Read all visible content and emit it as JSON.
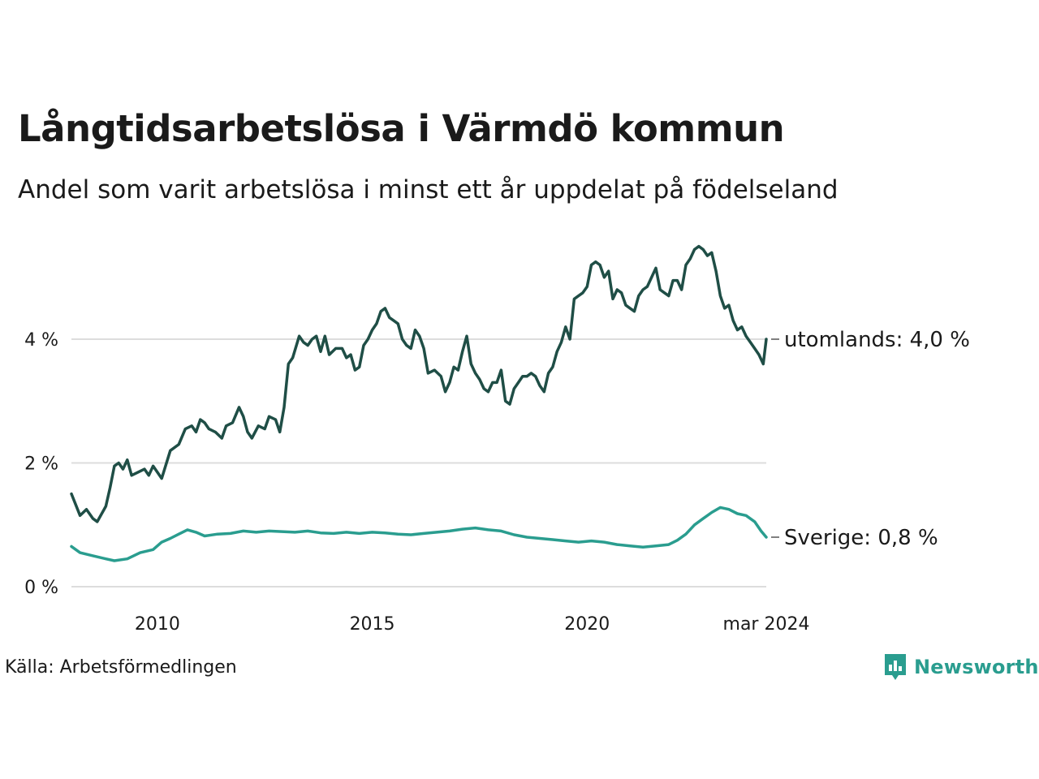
{
  "title": "Långtidsarbetslösa i Värmdö kommun",
  "subtitle": "Andel som varit arbetslösa i minst ett år uppdelat på födelseland",
  "source": "Källa: Arbetsförmedlingen",
  "brand": "Newsworthy",
  "colors": {
    "utomlands": "#1f4e46",
    "sverige": "#2a9d8f",
    "grid": "#dddddd",
    "text": "#1a1a1a"
  },
  "chart_data": {
    "type": "line",
    "title": "Långtidsarbetslösa i Värmdö kommun",
    "xlabel": "",
    "ylabel": "",
    "xlim": [
      2008.0,
      2024.17
    ],
    "ylim": [
      0,
      5.5
    ],
    "y_ticks": [
      {
        "value": 0,
        "label": "0 %"
      },
      {
        "value": 2,
        "label": "2 %"
      },
      {
        "value": 4,
        "label": "4 %"
      }
    ],
    "x_ticks": [
      {
        "value": 2010,
        "label": "2010"
      },
      {
        "value": 2015,
        "label": "2015"
      },
      {
        "value": 2020,
        "label": "2020"
      },
      {
        "value": 2024.17,
        "label": "mar 2024"
      }
    ],
    "series": [
      {
        "name": "utomlands",
        "end_label": "utomlands: 4,0 %",
        "color": "#1f4e46",
        "points": [
          [
            2008.0,
            1.5
          ],
          [
            2008.2,
            1.15
          ],
          [
            2008.35,
            1.25
          ],
          [
            2008.5,
            1.1
          ],
          [
            2008.6,
            1.05
          ],
          [
            2008.8,
            1.3
          ],
          [
            2008.9,
            1.6
          ],
          [
            2009.0,
            1.95
          ],
          [
            2009.1,
            2.0
          ],
          [
            2009.2,
            1.9
          ],
          [
            2009.3,
            2.05
          ],
          [
            2009.4,
            1.8
          ],
          [
            2009.55,
            1.85
          ],
          [
            2009.7,
            1.9
          ],
          [
            2009.8,
            1.8
          ],
          [
            2009.9,
            1.95
          ],
          [
            2010.1,
            1.75
          ],
          [
            2010.3,
            2.2
          ],
          [
            2010.5,
            2.3
          ],
          [
            2010.65,
            2.55
          ],
          [
            2010.8,
            2.6
          ],
          [
            2010.9,
            2.5
          ],
          [
            2011.0,
            2.7
          ],
          [
            2011.1,
            2.65
          ],
          [
            2011.2,
            2.55
          ],
          [
            2011.35,
            2.5
          ],
          [
            2011.5,
            2.4
          ],
          [
            2011.6,
            2.6
          ],
          [
            2011.75,
            2.65
          ],
          [
            2011.9,
            2.9
          ],
          [
            2012.0,
            2.75
          ],
          [
            2012.1,
            2.5
          ],
          [
            2012.2,
            2.4
          ],
          [
            2012.35,
            2.6
          ],
          [
            2012.5,
            2.55
          ],
          [
            2012.6,
            2.75
          ],
          [
            2012.75,
            2.7
          ],
          [
            2012.85,
            2.5
          ],
          [
            2012.95,
            2.9
          ],
          [
            2013.05,
            3.6
          ],
          [
            2013.15,
            3.7
          ],
          [
            2013.3,
            4.05
          ],
          [
            2013.4,
            3.95
          ],
          [
            2013.5,
            3.9
          ],
          [
            2013.6,
            4.0
          ],
          [
            2013.7,
            4.05
          ],
          [
            2013.8,
            3.8
          ],
          [
            2013.9,
            4.05
          ],
          [
            2014.0,
            3.75
          ],
          [
            2014.15,
            3.85
          ],
          [
            2014.3,
            3.85
          ],
          [
            2014.4,
            3.7
          ],
          [
            2014.5,
            3.75
          ],
          [
            2014.6,
            3.5
          ],
          [
            2014.7,
            3.55
          ],
          [
            2014.8,
            3.9
          ],
          [
            2014.9,
            4.0
          ],
          [
            2015.0,
            4.15
          ],
          [
            2015.1,
            4.25
          ],
          [
            2015.2,
            4.45
          ],
          [
            2015.3,
            4.5
          ],
          [
            2015.4,
            4.35
          ],
          [
            2015.5,
            4.3
          ],
          [
            2015.6,
            4.25
          ],
          [
            2015.7,
            4.0
          ],
          [
            2015.8,
            3.9
          ],
          [
            2015.9,
            3.85
          ],
          [
            2016.0,
            4.15
          ],
          [
            2016.1,
            4.05
          ],
          [
            2016.2,
            3.85
          ],
          [
            2016.3,
            3.45
          ],
          [
            2016.45,
            3.5
          ],
          [
            2016.6,
            3.4
          ],
          [
            2016.7,
            3.15
          ],
          [
            2016.8,
            3.3
          ],
          [
            2016.9,
            3.55
          ],
          [
            2017.0,
            3.5
          ],
          [
            2017.1,
            3.8
          ],
          [
            2017.2,
            4.05
          ],
          [
            2017.3,
            3.6
          ],
          [
            2017.4,
            3.45
          ],
          [
            2017.5,
            3.35
          ],
          [
            2017.6,
            3.2
          ],
          [
            2017.7,
            3.15
          ],
          [
            2017.8,
            3.3
          ],
          [
            2017.9,
            3.3
          ],
          [
            2018.0,
            3.5
          ],
          [
            2018.1,
            3.0
          ],
          [
            2018.2,
            2.95
          ],
          [
            2018.3,
            3.2
          ],
          [
            2018.4,
            3.3
          ],
          [
            2018.5,
            3.4
          ],
          [
            2018.6,
            3.4
          ],
          [
            2018.7,
            3.45
          ],
          [
            2018.8,
            3.4
          ],
          [
            2018.9,
            3.25
          ],
          [
            2019.0,
            3.15
          ],
          [
            2019.1,
            3.45
          ],
          [
            2019.2,
            3.55
          ],
          [
            2019.3,
            3.8
          ],
          [
            2019.4,
            3.95
          ],
          [
            2019.5,
            4.2
          ],
          [
            2019.6,
            4.0
          ],
          [
            2019.7,
            4.65
          ],
          [
            2019.8,
            4.7
          ],
          [
            2019.9,
            4.75
          ],
          [
            2020.0,
            4.85
          ],
          [
            2020.1,
            5.2
          ],
          [
            2020.2,
            5.25
          ],
          [
            2020.3,
            5.2
          ],
          [
            2020.4,
            5.0
          ],
          [
            2020.5,
            5.1
          ],
          [
            2020.6,
            4.65
          ],
          [
            2020.7,
            4.8
          ],
          [
            2020.8,
            4.75
          ],
          [
            2020.9,
            4.55
          ],
          [
            2021.0,
            4.5
          ],
          [
            2021.1,
            4.45
          ],
          [
            2021.2,
            4.7
          ],
          [
            2021.3,
            4.8
          ],
          [
            2021.4,
            4.85
          ],
          [
            2021.5,
            5.0
          ],
          [
            2021.6,
            5.15
          ],
          [
            2021.7,
            4.8
          ],
          [
            2021.8,
            4.75
          ],
          [
            2021.9,
            4.7
          ],
          [
            2022.0,
            4.95
          ],
          [
            2022.1,
            4.95
          ],
          [
            2022.2,
            4.8
          ],
          [
            2022.3,
            5.2
          ],
          [
            2022.4,
            5.3
          ],
          [
            2022.5,
            5.45
          ],
          [
            2022.6,
            5.5
          ],
          [
            2022.7,
            5.45
          ],
          [
            2022.8,
            5.35
          ],
          [
            2022.9,
            5.4
          ],
          [
            2023.0,
            5.1
          ],
          [
            2023.1,
            4.7
          ],
          [
            2023.2,
            4.5
          ],
          [
            2023.3,
            4.55
          ],
          [
            2023.4,
            4.3
          ],
          [
            2023.5,
            4.15
          ],
          [
            2023.6,
            4.2
          ],
          [
            2023.7,
            4.05
          ],
          [
            2023.8,
            3.95
          ],
          [
            2023.9,
            3.85
          ],
          [
            2024.0,
            3.75
          ],
          [
            2024.1,
            3.6
          ],
          [
            2024.17,
            4.0
          ]
        ]
      },
      {
        "name": "Sverige",
        "end_label": "Sverige: 0,8 %",
        "color": "#2a9d8f",
        "points": [
          [
            2008.0,
            0.65
          ],
          [
            2008.2,
            0.55
          ],
          [
            2008.5,
            0.5
          ],
          [
            2008.8,
            0.45
          ],
          [
            2009.0,
            0.42
          ],
          [
            2009.3,
            0.45
          ],
          [
            2009.6,
            0.55
          ],
          [
            2009.9,
            0.6
          ],
          [
            2010.1,
            0.72
          ],
          [
            2010.3,
            0.78
          ],
          [
            2010.5,
            0.85
          ],
          [
            2010.7,
            0.92
          ],
          [
            2010.9,
            0.88
          ],
          [
            2011.1,
            0.82
          ],
          [
            2011.4,
            0.85
          ],
          [
            2011.7,
            0.86
          ],
          [
            2012.0,
            0.9
          ],
          [
            2012.3,
            0.88
          ],
          [
            2012.6,
            0.9
          ],
          [
            2012.9,
            0.89
          ],
          [
            2013.2,
            0.88
          ],
          [
            2013.5,
            0.9
          ],
          [
            2013.8,
            0.87
          ],
          [
            2014.1,
            0.86
          ],
          [
            2014.4,
            0.88
          ],
          [
            2014.7,
            0.86
          ],
          [
            2015.0,
            0.88
          ],
          [
            2015.3,
            0.87
          ],
          [
            2015.6,
            0.85
          ],
          [
            2015.9,
            0.84
          ],
          [
            2016.2,
            0.86
          ],
          [
            2016.5,
            0.88
          ],
          [
            2016.8,
            0.9
          ],
          [
            2017.1,
            0.93
          ],
          [
            2017.4,
            0.95
          ],
          [
            2017.7,
            0.92
          ],
          [
            2018.0,
            0.9
          ],
          [
            2018.3,
            0.84
          ],
          [
            2018.6,
            0.8
          ],
          [
            2018.9,
            0.78
          ],
          [
            2019.2,
            0.76
          ],
          [
            2019.5,
            0.74
          ],
          [
            2019.8,
            0.72
          ],
          [
            2020.1,
            0.74
          ],
          [
            2020.4,
            0.72
          ],
          [
            2020.7,
            0.68
          ],
          [
            2021.0,
            0.66
          ],
          [
            2021.3,
            0.64
          ],
          [
            2021.6,
            0.66
          ],
          [
            2021.9,
            0.68
          ],
          [
            2022.1,
            0.75
          ],
          [
            2022.3,
            0.85
          ],
          [
            2022.5,
            1.0
          ],
          [
            2022.7,
            1.1
          ],
          [
            2022.9,
            1.2
          ],
          [
            2023.1,
            1.28
          ],
          [
            2023.3,
            1.25
          ],
          [
            2023.5,
            1.18
          ],
          [
            2023.7,
            1.15
          ],
          [
            2023.9,
            1.05
          ],
          [
            2024.05,
            0.9
          ],
          [
            2024.17,
            0.8
          ]
        ]
      }
    ]
  }
}
